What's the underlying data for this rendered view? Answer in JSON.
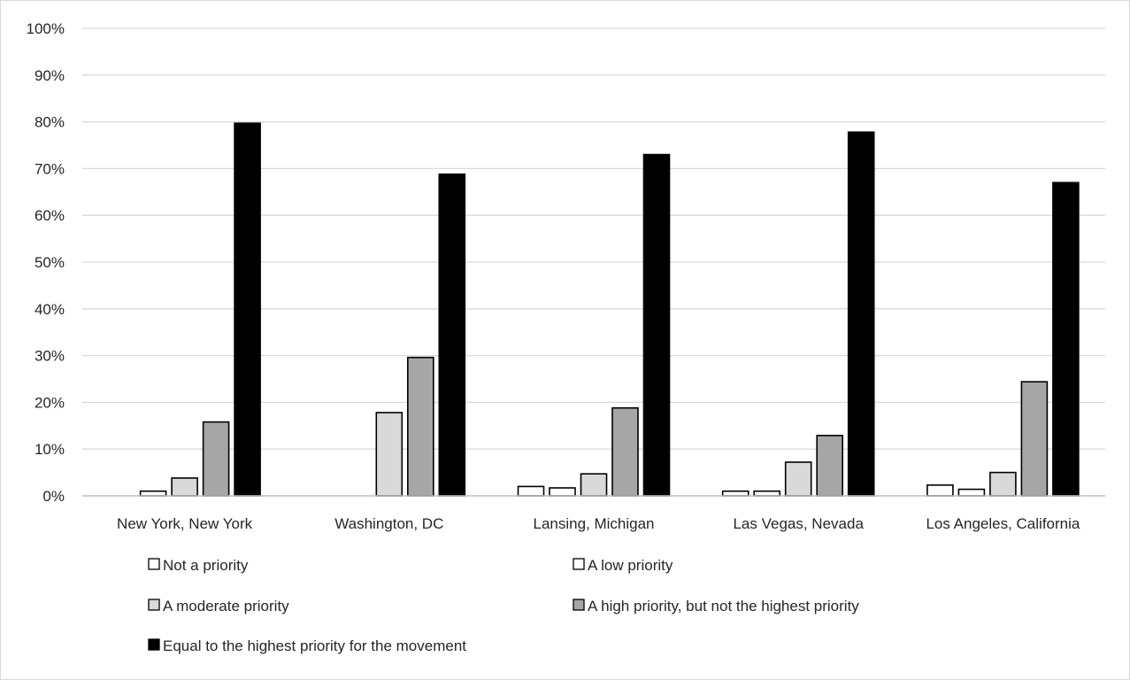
{
  "chart_data": {
    "type": "bar",
    "title": "",
    "xlabel": "",
    "ylabel": "",
    "ylim": [
      0,
      100
    ],
    "y_ticks": [
      "0%",
      "10%",
      "20%",
      "30%",
      "40%",
      "50%",
      "60%",
      "70%",
      "80%",
      "90%",
      "100%"
    ],
    "y_tick_values": [
      0,
      10,
      20,
      30,
      40,
      50,
      60,
      70,
      80,
      90,
      100
    ],
    "grid": true,
    "legend_position": "bottom",
    "categories": [
      "New York, New York",
      "Washington, DC",
      "Lansing, Michigan",
      "Las Vegas, Nevada",
      "Los Angeles, California"
    ],
    "series": [
      {
        "name": "Not a priority",
        "color": "#ffffff",
        "values": [
          0,
          0,
          2.0,
          1.0,
          2.3
        ]
      },
      {
        "name": "A low priority",
        "color": "#ffffff",
        "values": [
          1.0,
          0,
          1.7,
          1.0,
          1.4
        ]
      },
      {
        "name": "A moderate priority",
        "color": "#d9d9d9",
        "values": [
          3.8,
          17.8,
          4.7,
          7.2,
          5.0
        ]
      },
      {
        "name": "A high priority, but not the highest priority",
        "color": "#a6a6a6",
        "values": [
          15.8,
          29.6,
          18.8,
          12.9,
          24.4
        ]
      },
      {
        "name": "Equal to the highest priority for the movement",
        "color": "#000000",
        "values": [
          79.7,
          68.8,
          73.0,
          77.8,
          67.0
        ]
      }
    ]
  }
}
